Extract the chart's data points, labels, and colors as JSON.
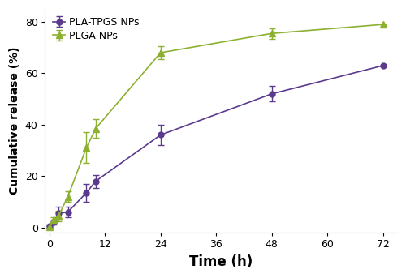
{
  "pla_tpgs_x": [
    0,
    1,
    2,
    4,
    8,
    10,
    24,
    48,
    72
  ],
  "pla_tpgs_y": [
    0.5,
    2.0,
    5.5,
    6.0,
    13.5,
    18.0,
    36.0,
    52.0,
    63.0
  ],
  "pla_tpgs_yerr": [
    0.5,
    1.0,
    2.5,
    2.0,
    3.5,
    2.5,
    4.0,
    3.0,
    0.0
  ],
  "plga_x": [
    0,
    1,
    2,
    4,
    8,
    10,
    24,
    48,
    72
  ],
  "plga_y": [
    0.2,
    3.0,
    4.5,
    12.0,
    31.0,
    38.5,
    68.0,
    75.5,
    79.0
  ],
  "plga_yerr": [
    0.2,
    1.0,
    2.0,
    2.0,
    6.0,
    3.5,
    2.5,
    2.0,
    0.0
  ],
  "pla_color": "#5b3a8e",
  "plga_color": "#8cb030",
  "xlabel": "Time (h)",
  "ylabel": "Cumulative release (%)",
  "xlim": [
    -1,
    75
  ],
  "ylim": [
    -2,
    85
  ],
  "xticks": [
    0,
    12,
    24,
    36,
    48,
    60,
    72
  ],
  "yticks": [
    0,
    20,
    40,
    60,
    80
  ],
  "legend_pla": "PLA-TPGS NPs",
  "legend_plga": "PLGA NPs"
}
